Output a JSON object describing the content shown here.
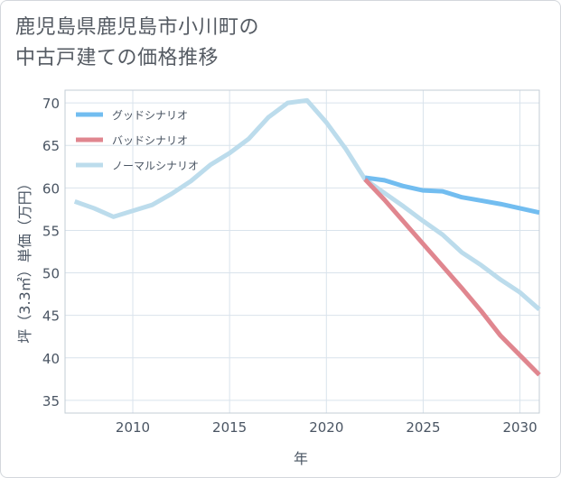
{
  "title": "鹿児島県鹿児島市小川町の\n中古戸建ての価格推移",
  "chart_data": {
    "type": "line",
    "xlabel": "年",
    "ylabel": "坪（3.3㎡）単価（万円）",
    "xlim": [
      2006.5,
      2031
    ],
    "ylim": [
      33.5,
      71.5
    ],
    "xticks": [
      2010,
      2015,
      2020,
      2025,
      2030
    ],
    "yticks": [
      35,
      40,
      45,
      50,
      55,
      60,
      65,
      70
    ],
    "grid": true,
    "legend_position": "top-left",
    "series": [
      {
        "name": "グッドシナリオ",
        "color": "#72bdf0",
        "x": [
          2022,
          2023,
          2024,
          2025,
          2026,
          2027,
          2028,
          2029,
          2030,
          2031
        ],
        "y": [
          61.2,
          60.9,
          60.2,
          59.7,
          59.6,
          58.9,
          58.5,
          58.1,
          57.6,
          57.1
        ]
      },
      {
        "name": "バッドシナリオ",
        "color": "#e0868f",
        "x": [
          2022,
          2023,
          2024,
          2025,
          2026,
          2027,
          2028,
          2029,
          2030,
          2031
        ],
        "y": [
          61.0,
          58.6,
          56.0,
          53.4,
          50.8,
          48.2,
          45.5,
          42.6,
          40.3,
          38.0
        ]
      },
      {
        "name": "ノーマルシナリオ",
        "color": "#bcdcec",
        "x": [
          2007,
          2008,
          2009,
          2010,
          2011,
          2012,
          2013,
          2014,
          2015,
          2016,
          2017,
          2018,
          2019,
          2020,
          2021,
          2022,
          2023,
          2024,
          2025,
          2026,
          2027,
          2028,
          2029,
          2030,
          2031
        ],
        "y": [
          58.4,
          57.6,
          56.6,
          57.3,
          58.0,
          59.3,
          60.8,
          62.7,
          64.1,
          65.8,
          68.3,
          70.0,
          70.3,
          67.7,
          64.6,
          61.0,
          59.4,
          57.8,
          56.1,
          54.5,
          52.4,
          50.9,
          49.2,
          47.7,
          45.7
        ]
      }
    ]
  }
}
